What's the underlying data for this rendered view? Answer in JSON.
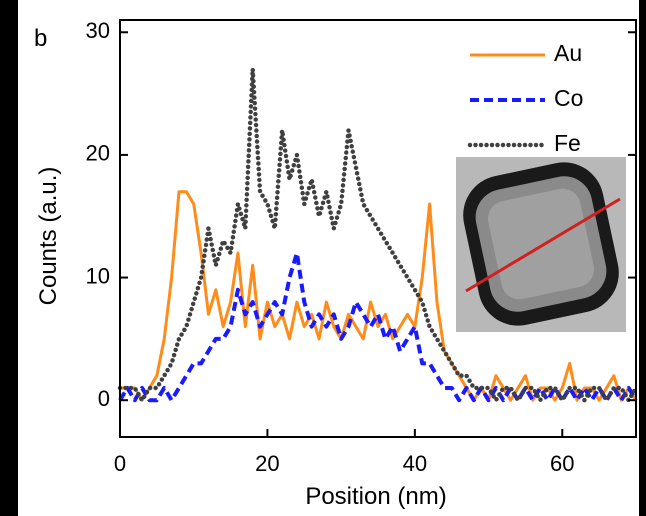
{
  "chart_data": {
    "type": "line",
    "panel_label": "b",
    "xlabel": "Position (nm)",
    "ylabel": "Counts (a.u.)",
    "x": [
      0,
      1,
      2,
      3,
      4,
      5,
      6,
      7,
      8,
      9,
      10,
      11,
      12,
      13,
      14,
      15,
      16,
      17,
      18,
      19,
      20,
      21,
      22,
      23,
      24,
      25,
      26,
      27,
      28,
      29,
      30,
      31,
      32,
      33,
      34,
      35,
      36,
      37,
      38,
      39,
      40,
      41,
      42,
      43,
      44,
      45,
      46,
      47,
      48,
      49,
      50,
      51,
      52,
      53,
      54,
      55,
      56,
      57,
      58,
      59,
      60,
      61,
      62,
      63,
      64,
      65,
      66,
      67,
      68,
      69,
      70
    ],
    "series": [
      {
        "name": "Au",
        "color": "#ff8c1a",
        "style": "solid",
        "values": [
          1,
          1,
          1,
          0,
          1,
          2,
          5,
          10,
          17,
          17,
          16,
          12,
          7,
          9,
          6,
          8,
          12,
          6,
          11,
          5,
          8,
          6,
          7,
          5,
          8,
          6,
          7,
          5,
          8,
          6,
          5,
          7,
          6,
          5,
          8,
          6,
          7,
          5,
          6,
          7,
          6,
          10,
          16,
          8,
          4,
          3,
          2,
          1,
          0,
          1,
          0,
          2,
          1,
          0,
          1,
          2,
          0,
          1,
          1,
          0,
          1,
          3,
          0,
          1,
          1,
          0,
          1,
          2,
          0,
          1,
          0
        ]
      },
      {
        "name": "Co",
        "color": "#1a1aff",
        "style": "dashed",
        "values": [
          0,
          1,
          0,
          1,
          0,
          0,
          1,
          0,
          1,
          2,
          3,
          3,
          4,
          5,
          5,
          6,
          9,
          7,
          8,
          6,
          7,
          8,
          7,
          10,
          12,
          8,
          6,
          7,
          6,
          7,
          5,
          6,
          8,
          7,
          6,
          7,
          5,
          6,
          4,
          5,
          6,
          3,
          3,
          2,
          1,
          1,
          0,
          1,
          0,
          1,
          0,
          1,
          0,
          1,
          0,
          1,
          0,
          1,
          0,
          1,
          0,
          1,
          0,
          1,
          0,
          1,
          0,
          1,
          0,
          1,
          0
        ]
      },
      {
        "name": "Fe",
        "color": "#404040",
        "style": "dotted",
        "values": [
          1,
          1,
          1,
          0,
          1,
          1,
          2,
          3,
          5,
          6,
          8,
          10,
          14,
          11,
          13,
          12,
          16,
          14,
          27,
          17,
          16,
          14,
          22,
          18,
          20,
          16,
          18,
          15,
          17,
          14,
          16,
          22,
          19,
          16,
          15,
          14,
          13,
          12,
          11,
          10,
          9,
          8,
          6,
          5,
          4,
          3,
          2,
          2,
          1,
          1,
          1,
          0,
          1,
          1,
          0,
          1,
          1,
          0,
          1,
          1,
          0,
          1,
          1,
          0,
          1,
          1,
          0,
          1,
          1,
          0,
          1
        ]
      }
    ],
    "xlim": [
      0,
      70
    ],
    "ylim": [
      -3,
      31
    ],
    "xticks": [
      0,
      20,
      40,
      60
    ],
    "yticks": [
      0,
      10,
      20,
      30
    ],
    "legend": "upper right"
  }
}
